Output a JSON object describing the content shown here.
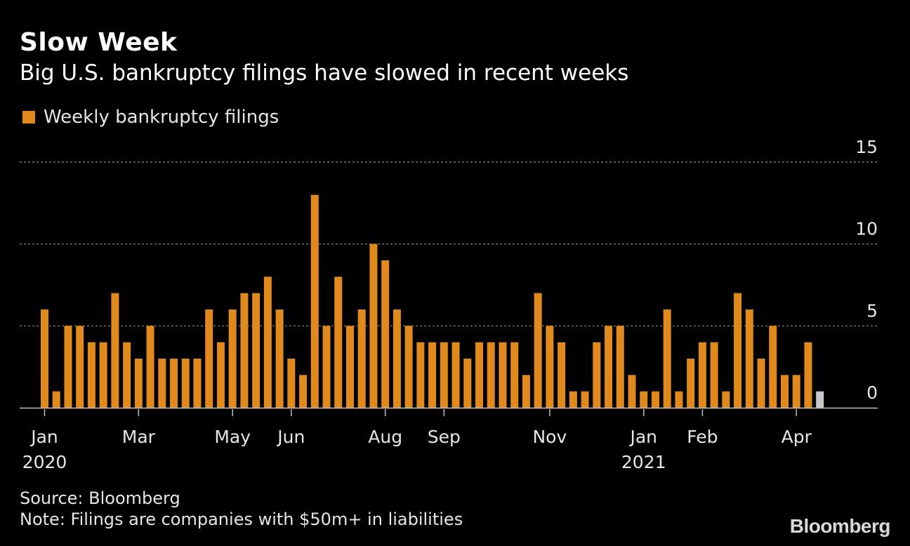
{
  "chart_data": {
    "type": "bar",
    "title": "Slow Week",
    "subtitle": "Big U.S. bankruptcy filings have slowed in recent weeks",
    "legend": [
      {
        "label": "Weekly bankruptcy filings",
        "color": "#e08a1e"
      }
    ],
    "xlabel": "",
    "ylabel": "",
    "ylim": [
      0,
      15
    ],
    "yticks": [
      0,
      5,
      10,
      15
    ],
    "grid": true,
    "values": [
      6,
      1,
      5,
      5,
      4,
      4,
      7,
      4,
      3,
      5,
      3,
      3,
      3,
      3,
      6,
      4,
      6,
      7,
      7,
      8,
      6,
      3,
      2,
      13,
      5,
      8,
      5,
      6,
      10,
      9,
      6,
      5,
      4,
      4,
      4,
      4,
      3,
      4,
      4,
      4,
      4,
      2,
      7,
      5,
      4,
      1,
      1,
      4,
      5,
      5,
      2,
      1,
      1,
      6,
      1,
      3,
      4,
      4,
      1,
      7,
      6,
      3,
      5,
      2,
      2,
      4,
      1
    ],
    "bar_colors": {
      "default": "#e08a1e",
      "partial_week": "#c8c8c8"
    },
    "x_labels": [
      {
        "bar_index": 0,
        "text": "Jan",
        "subtext": "2020"
      },
      {
        "bar_index": 8,
        "text": "Mar"
      },
      {
        "bar_index": 16,
        "text": "May"
      },
      {
        "bar_index": 21,
        "text": "Jun"
      },
      {
        "bar_index": 29,
        "text": "Aug"
      },
      {
        "bar_index": 34,
        "text": "Sep"
      },
      {
        "bar_index": 43,
        "text": "Nov"
      },
      {
        "bar_index": 51,
        "text": "Jan",
        "subtext": "2021"
      },
      {
        "bar_index": 56,
        "text": "Feb"
      },
      {
        "bar_index": 64,
        "text": "Apr"
      }
    ]
  },
  "footer": {
    "source": "Source: Bloomberg",
    "note": "Note: Filings are companies with $50m+ in liabilities",
    "brand": "Bloomberg"
  }
}
